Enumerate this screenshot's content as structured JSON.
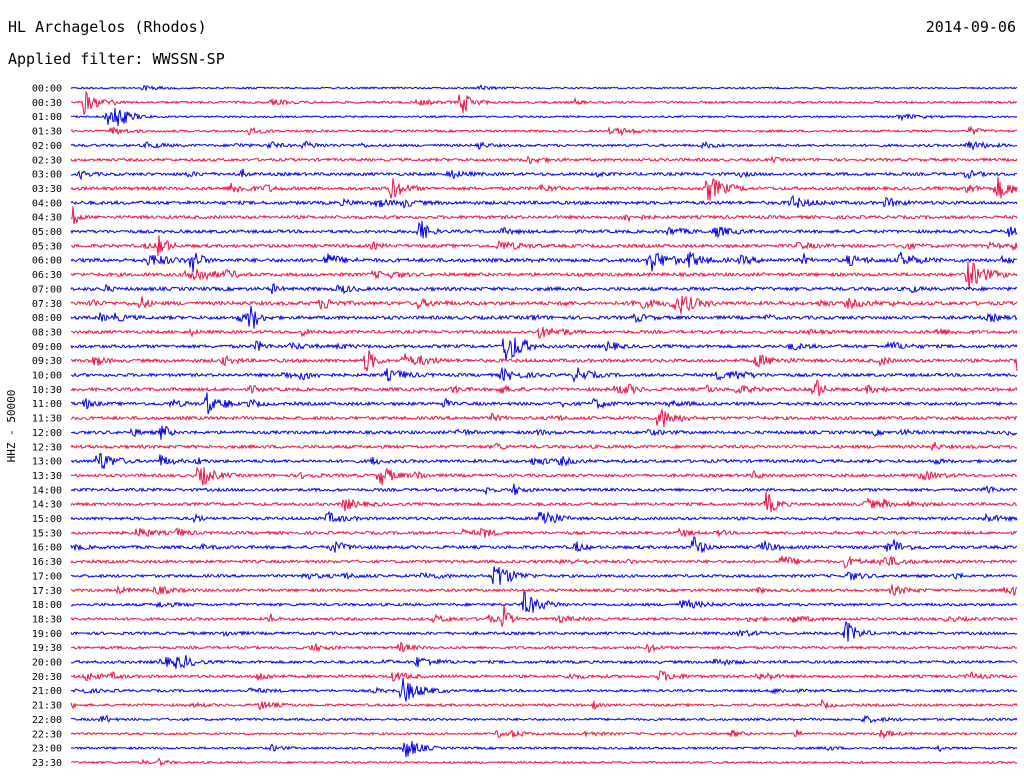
{
  "header": {
    "station": "HL Archagelos (Rhodos)",
    "date": "2014-09-06",
    "filter_label": "Applied filter:",
    "filter_value": "WWSSN-SP"
  },
  "colors": {
    "trace_even": "#0000ee",
    "trace_odd": "#ee1144",
    "background": "#ffffff",
    "axis": "#000000"
  },
  "chart_data": {
    "type": "line",
    "subtype": "helicorder",
    "title": "HL Archagelos (Rhodos)",
    "ylabel": "HHZ - 50000",
    "xlabel": "",
    "row_interval_minutes": 30,
    "legend": "none",
    "grid": false,
    "row_labels": [
      "00:00",
      "00:30",
      "01:00",
      "01:30",
      "02:00",
      "02:30",
      "03:00",
      "03:30",
      "04:00",
      "04:30",
      "05:00",
      "05:30",
      "06:00",
      "06:30",
      "07:00",
      "07:30",
      "08:00",
      "08:30",
      "09:00",
      "09:30",
      "10:00",
      "10:30",
      "11:00",
      "11:30",
      "12:00",
      "12:30",
      "13:00",
      "13:30",
      "14:00",
      "14:30",
      "15:00",
      "15:30",
      "16:00",
      "16:30",
      "17:00",
      "17:30",
      "18:00",
      "18:30",
      "19:00",
      "19:30",
      "20:00",
      "20:30",
      "21:00",
      "21:30",
      "22:00",
      "22:30",
      "23:00",
      "23:30"
    ],
    "row_colors": [
      "blue",
      "red"
    ],
    "activity_level": [
      0.15,
      0.35,
      0.2,
      0.35,
      0.45,
      0.55,
      0.65,
      0.7,
      0.75,
      0.7,
      0.65,
      0.7,
      0.85,
      0.75,
      0.8,
      0.85,
      0.75,
      0.65,
      0.7,
      0.75,
      0.65,
      0.7,
      0.7,
      0.7,
      0.65,
      0.7,
      0.65,
      0.6,
      0.6,
      0.6,
      0.6,
      0.6,
      0.65,
      0.6,
      0.55,
      0.55,
      0.55,
      0.55,
      0.55,
      0.5,
      0.55,
      0.55,
      0.45,
      0.45,
      0.4,
      0.35,
      0.35,
      0.3
    ]
  }
}
